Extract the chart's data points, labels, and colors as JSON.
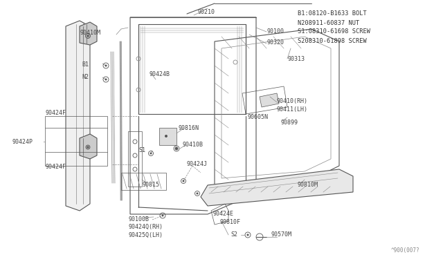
{
  "bg_color": "#ffffff",
  "lc": "#888888",
  "dc": "#555555",
  "tc": "#444444",
  "legend": [
    "B1:08120-B1633 BOLT",
    "N208911-60837 NUT",
    "S1:08310-61698 SCREW",
    "S208310-61898 SCREW"
  ],
  "diagram_code": "^900(007?"
}
